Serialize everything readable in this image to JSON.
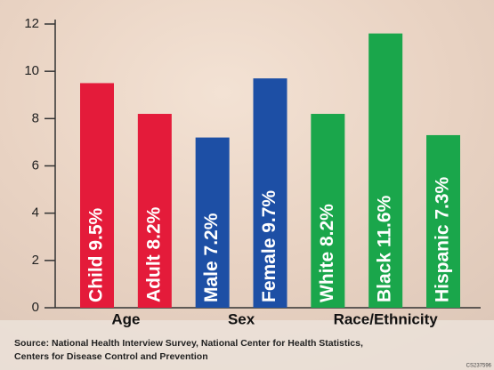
{
  "chart_data": {
    "type": "bar",
    "categories": [
      null,
      null,
      null,
      null,
      null,
      null,
      null
    ],
    "series": [
      {
        "name": "Age",
        "color": "#e41b3a",
        "values": [
          9.5,
          8.2,
          null,
          null,
          null,
          null,
          null
        ],
        "value_labels": [
          "Child 9.5%",
          "Adult 8.2%",
          null,
          null,
          null,
          null,
          null
        ]
      },
      {
        "name": "Sex",
        "color": "#1d4fa5",
        "values": [
          null,
          null,
          7.2,
          9.7,
          null,
          null,
          null
        ],
        "value_labels": [
          null,
          null,
          "Male 7.2%",
          "Female 9.7%",
          null,
          null,
          null
        ]
      },
      {
        "name": "Race/Ethnicity",
        "color": "#1aa64b",
        "values": [
          null,
          null,
          null,
          null,
          8.2,
          11.6,
          7.3
        ],
        "value_labels": [
          null,
          null,
          null,
          null,
          "White 8.2%",
          "Black 11.6%",
          "Hispanic 7.3%"
        ]
      }
    ],
    "ylim": [
      0,
      12
    ],
    "yticks": [
      0,
      2,
      4,
      6,
      8,
      10,
      12
    ]
  },
  "source": [
    "Source: National Health Interview Survey, National Center for Health Statistics,",
    "Centers for Disease Control and Prevention"
  ],
  "code": "CS237596"
}
